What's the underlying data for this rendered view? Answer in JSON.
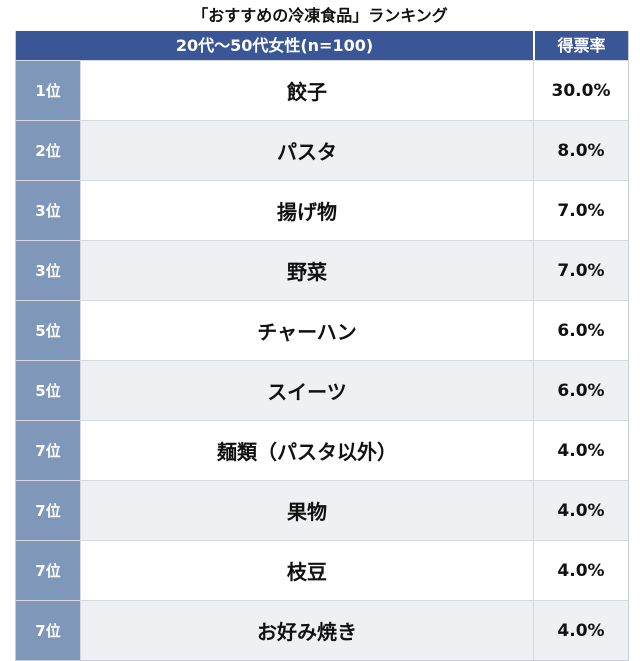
{
  "chart_data": {
    "type": "table",
    "title": "「おすすめの冷凍食品」ランキング",
    "columns": [
      "20代〜50代女性(n=100)",
      "得票率"
    ],
    "rows": [
      {
        "rank": "1位",
        "item": "餃子",
        "share_label": "30.0%",
        "share": 30.0
      },
      {
        "rank": "2位",
        "item": "パスタ",
        "share_label": "8.0%",
        "share": 8.0
      },
      {
        "rank": "3位",
        "item": "揚げ物",
        "share_label": "7.0%",
        "share": 7.0
      },
      {
        "rank": "3位",
        "item": "野菜",
        "share_label": "7.0%",
        "share": 7.0
      },
      {
        "rank": "5位",
        "item": "チャーハン",
        "share_label": "6.0%",
        "share": 6.0
      },
      {
        "rank": "5位",
        "item": "スイーツ",
        "share_label": "6.0%",
        "share": 6.0
      },
      {
        "rank": "7位",
        "item": "麺類（パスタ以外）",
        "share_label": "4.0%",
        "share": 4.0
      },
      {
        "rank": "7位",
        "item": "果物",
        "share_label": "4.0%",
        "share": 4.0
      },
      {
        "rank": "7位",
        "item": "枝豆",
        "share_label": "4.0%",
        "share": 4.0
      },
      {
        "rank": "7位",
        "item": "お好み焼き",
        "share_label": "4.0%",
        "share": 4.0
      }
    ]
  },
  "colors": {
    "header_bg": "#3a5696",
    "rank_bg": "#7f97b9",
    "alt_row_bg": "#eef0f4"
  }
}
